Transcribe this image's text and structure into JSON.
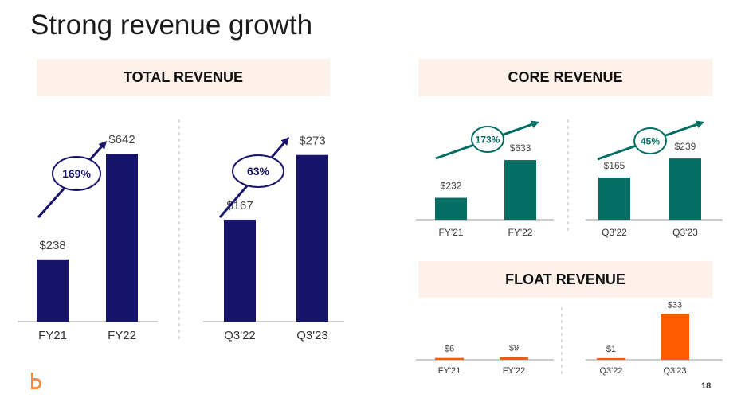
{
  "page": {
    "title": "Strong revenue growth",
    "page_number": "18"
  },
  "colors": {
    "navy": "#17146c",
    "teal": "#046e64",
    "orange": "#ff5a00",
    "header_bg": "#fdf1ea",
    "axis": "#999999",
    "divider": "#bbbbbb"
  },
  "panels": {
    "total": {
      "heading": "TOTAL REVENUE"
    },
    "core": {
      "heading": "CORE REVENUE"
    },
    "float": {
      "heading": "FLOAT REVENUE"
    }
  },
  "chart_data": [
    {
      "id": "total_fy",
      "type": "bar",
      "categories": [
        "FY21",
        "FY22"
      ],
      "values": [
        238,
        642
      ],
      "labels": [
        "$238",
        "$642"
      ],
      "growth": "169%",
      "color": "navy",
      "ylim": [
        0,
        700
      ]
    },
    {
      "id": "total_q",
      "type": "bar",
      "categories": [
        "Q3'22",
        "Q3'23"
      ],
      "values": [
        167,
        273
      ],
      "labels": [
        "$167",
        "$273"
      ],
      "growth": "63%",
      "color": "navy",
      "ylim": [
        0,
        300
      ]
    },
    {
      "id": "core_fy",
      "type": "bar",
      "categories": [
        "FY'21",
        "FY'22"
      ],
      "values": [
        232,
        633
      ],
      "labels": [
        "$232",
        "$633"
      ],
      "growth": "173%",
      "color": "teal",
      "ylim": [
        0,
        1250
      ]
    },
    {
      "id": "core_q",
      "type": "bar",
      "categories": [
        "Q3'22",
        "Q3'23"
      ],
      "values": [
        165,
        239
      ],
      "labels": [
        "$165",
        "$239"
      ],
      "growth": "45%",
      "color": "teal",
      "ylim": [
        0,
        460
      ]
    },
    {
      "id": "float_fy",
      "type": "bar",
      "categories": [
        "FY'21",
        "FY'22"
      ],
      "values": [
        6,
        9
      ],
      "labels": [
        "$6",
        "$9"
      ],
      "color": "orange",
      "ylim": [
        0,
        90
      ]
    },
    {
      "id": "float_q",
      "type": "bar",
      "categories": [
        "Q3'22",
        "Q3'23"
      ],
      "values": [
        1,
        33
      ],
      "labels": [
        "$1",
        "$33"
      ],
      "color": "orange",
      "ylim": [
        0,
        36
      ]
    }
  ]
}
